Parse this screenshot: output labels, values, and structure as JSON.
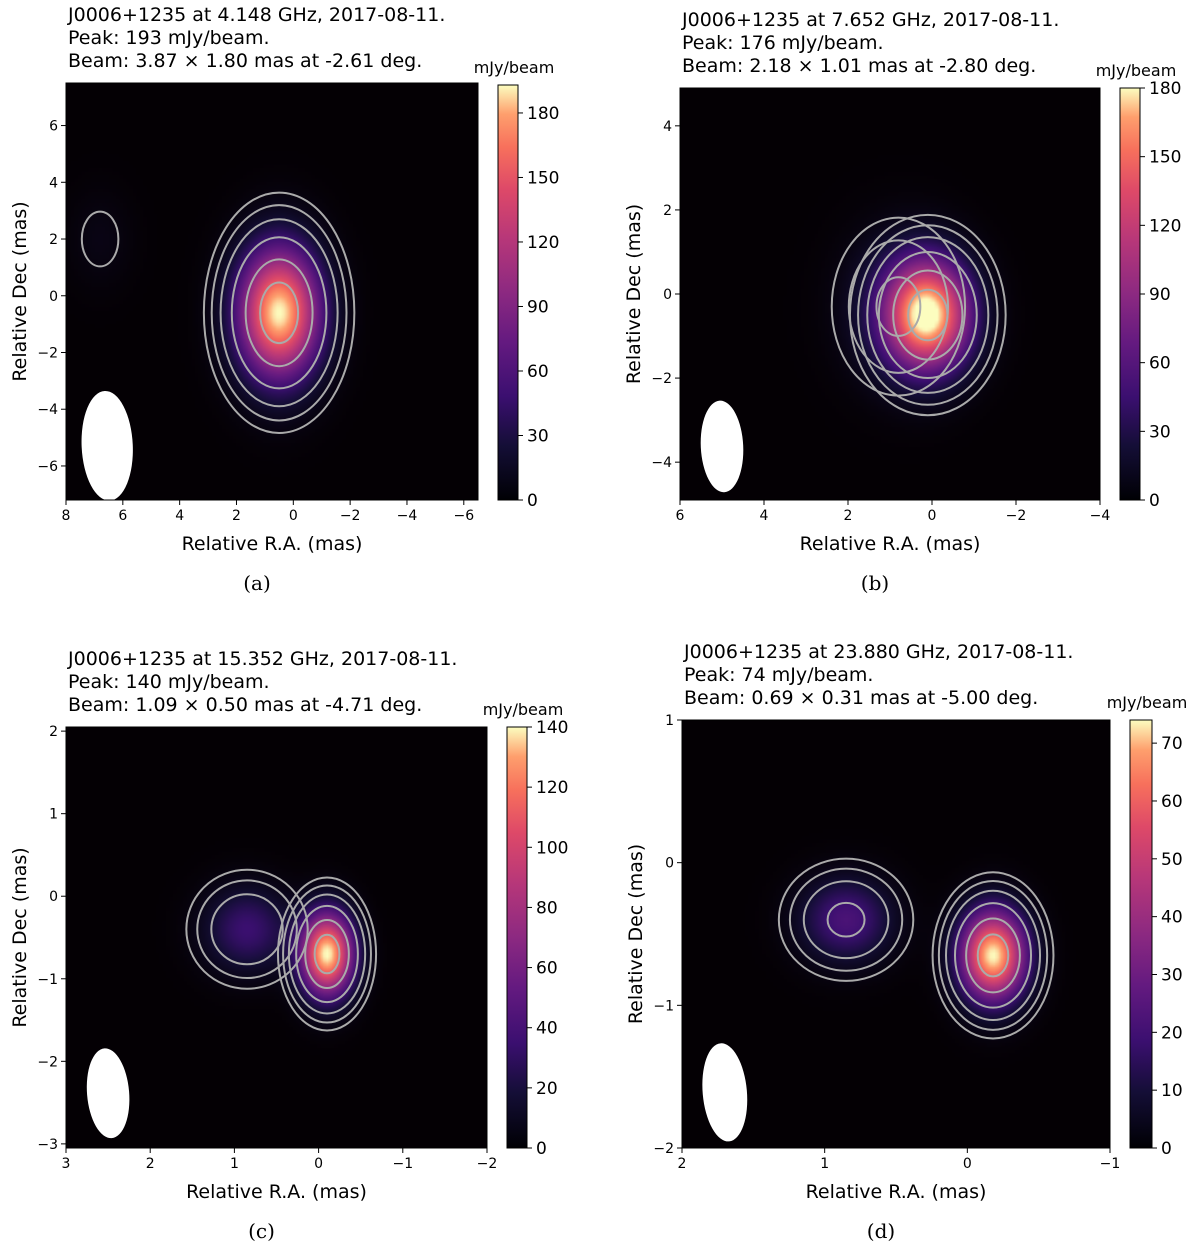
{
  "chart_data": [
    {
      "type": "heatmap",
      "panel_label": "(a)",
      "title_lines": [
        "J0006+1235 at 4.148 GHz, 2017-08-11.",
        "Peak: 193 mJy/beam.",
        "Beam: 3.87 × 1.80 mas at -2.61 deg."
      ],
      "xlabel": "Relative R.A. (mas)",
      "ylabel": "Relative Dec (mas)",
      "xlim": [
        8,
        -6.5
      ],
      "ylim": [
        -7.2,
        7.5
      ],
      "xticks": [
        8,
        6,
        4,
        2,
        0,
        -2,
        -4,
        -6
      ],
      "yticks": [
        -6,
        -4,
        -2,
        0,
        2,
        4,
        6
      ],
      "colorbar": {
        "label": "mJy/beam",
        "range": [
          0,
          193
        ],
        "ticks": [
          0,
          30,
          60,
          90,
          120,
          150,
          180
        ]
      },
      "peak": 193,
      "components": [
        {
          "x": 0.5,
          "y": -0.6,
          "flux": 193,
          "sx": 1.0,
          "sy": 1.6
        },
        {
          "x": 6.8,
          "y": 2.0,
          "flux": 8,
          "sx": 0.8,
          "sy": 1.2
        }
      ],
      "beam": {
        "major": 3.87,
        "minor": 1.8,
        "pa": -2.61
      }
    },
    {
      "type": "heatmap",
      "panel_label": "(b)",
      "title_lines": [
        "J0006+1235 at 7.652 GHz, 2017-08-11.",
        "Peak: 176 mJy/beam.",
        "Beam: 2.18 × 1.01 mas at -2.80 deg."
      ],
      "xlabel": "Relative R.A. (mas)",
      "ylabel": "Relative Dec (mas)",
      "xlim": [
        6,
        -4
      ],
      "ylim": [
        -4.9,
        4.9
      ],
      "xticks": [
        6,
        4,
        2,
        0,
        -2,
        -4
      ],
      "yticks": [
        -4,
        -2,
        0,
        2,
        4
      ],
      "colorbar": {
        "label": "mJy/beam",
        "range": [
          0,
          180
        ],
        "ticks": [
          0,
          30,
          60,
          90,
          120,
          150,
          180
        ]
      },
      "peak": 176,
      "components": [
        {
          "x": 0.1,
          "y": -0.5,
          "flux": 176,
          "sx": 0.7,
          "sy": 0.9
        },
        {
          "x": 0.8,
          "y": -0.3,
          "flux": 25,
          "sx": 0.9,
          "sy": 1.2
        }
      ],
      "beam": {
        "major": 2.18,
        "minor": 1.01,
        "pa": -2.8
      }
    },
    {
      "type": "heatmap",
      "panel_label": "(c)",
      "title_lines": [
        "J0006+1235 at 15.352 GHz, 2017-08-11.",
        "Peak: 140 mJy/beam.",
        "Beam: 1.09 × 0.50 mas at -4.71 deg."
      ],
      "xlabel": "Relative R.A. (mas)",
      "ylabel": "Relative Dec (mas)",
      "xlim": [
        3,
        -2
      ],
      "ylim": [
        -3.05,
        2.05
      ],
      "xticks": [
        3,
        2,
        1,
        0,
        -1,
        -2
      ],
      "yticks": [
        -3,
        -2,
        -1,
        0,
        1,
        2
      ],
      "colorbar": {
        "label": "mJy/beam",
        "range": [
          0,
          140
        ],
        "ticks": [
          0,
          20,
          40,
          60,
          80,
          100,
          120,
          140
        ]
      },
      "peak": 140,
      "components": [
        {
          "x": -0.1,
          "y": -0.7,
          "flux": 140,
          "sx": 0.22,
          "sy": 0.35
        },
        {
          "x": 0.85,
          "y": -0.4,
          "flux": 35,
          "sx": 0.35,
          "sy": 0.35
        }
      ],
      "beam": {
        "major": 1.09,
        "minor": 0.5,
        "pa": -4.71
      }
    },
    {
      "type": "heatmap",
      "panel_label": "(d)",
      "title_lines": [
        "J0006+1235 at 23.880 GHz, 2017-08-11.",
        "Peak: 74 mJy/beam.",
        "Beam: 0.69 × 0.31 mas at -5.00 deg."
      ],
      "xlabel": "Relative R.A. (mas)",
      "ylabel": "Relative Dec (mas)",
      "xlim": [
        2,
        -1
      ],
      "ylim": [
        -2,
        1
      ],
      "xticks": [
        2,
        1,
        0,
        -1
      ],
      "yticks": [
        -2,
        -1,
        0,
        1
      ],
      "colorbar": {
        "label": "mJy/beam",
        "range": [
          0,
          74
        ],
        "ticks": [
          0,
          10,
          20,
          30,
          40,
          50,
          60,
          70
        ]
      },
      "peak": 74,
      "components": [
        {
          "x": -0.18,
          "y": -0.65,
          "flux": 74,
          "sx": 0.16,
          "sy": 0.22
        },
        {
          "x": 0.85,
          "y": -0.4,
          "flux": 22,
          "sx": 0.22,
          "sy": 0.2
        }
      ],
      "beam": {
        "major": 0.69,
        "minor": 0.31,
        "pa": -5.0
      }
    }
  ]
}
